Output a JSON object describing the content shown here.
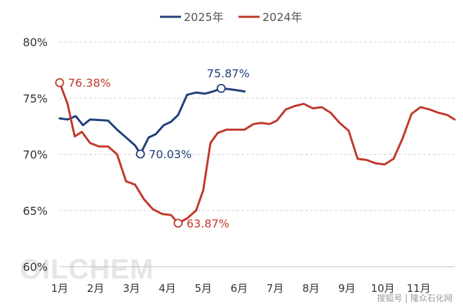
{
  "chart_data": {
    "type": "line",
    "title": "",
    "xlabel": "",
    "ylabel": "",
    "ylim": [
      60,
      80
    ],
    "y_ticks": [
      60,
      65,
      70,
      75,
      80
    ],
    "y_tick_labels": [
      "60%",
      "65%",
      "70%",
      "75%",
      "80%"
    ],
    "x_range": [
      1,
      12
    ],
    "x_ticks": [
      1,
      2,
      3,
      4,
      5,
      6,
      7,
      8,
      9,
      10,
      11
    ],
    "x_tick_labels": [
      "1月",
      "2月",
      "3月",
      "4月",
      "5月",
      "6月",
      "7月",
      "8月",
      "9月",
      "10月",
      "11月"
    ],
    "grid": "horizontal dashed",
    "legend_position": "top-center",
    "series": [
      {
        "name": "2025年",
        "color": "#1f3f7a",
        "x": [
          1.0,
          1.22,
          1.45,
          1.65,
          1.85,
          2.1,
          2.35,
          2.6,
          2.85,
          3.1,
          3.25,
          3.48,
          3.68,
          3.9,
          4.1,
          4.3,
          4.55,
          4.8,
          5.05,
          5.28,
          5.5,
          5.72,
          5.95,
          6.15
        ],
        "y": [
          73.2,
          73.1,
          73.4,
          72.6,
          73.1,
          73.05,
          73.0,
          72.2,
          71.5,
          70.8,
          70.03,
          71.5,
          71.8,
          72.6,
          72.9,
          73.5,
          75.3,
          75.5,
          75.4,
          75.6,
          75.87,
          75.8,
          75.7,
          75.6
        ]
      },
      {
        "name": "2024年",
        "color": "#c0392b",
        "x": [
          1.0,
          1.22,
          1.42,
          1.62,
          1.85,
          2.1,
          2.35,
          2.6,
          2.85,
          3.1,
          3.35,
          3.6,
          3.85,
          4.1,
          4.3,
          4.55,
          4.8,
          5.0,
          5.2,
          5.4,
          5.65,
          5.9,
          6.15,
          6.4,
          6.62,
          6.85,
          7.05,
          7.3,
          7.55,
          7.8,
          8.05,
          8.3,
          8.55,
          8.8,
          9.05,
          9.3,
          9.55,
          9.8,
          10.05,
          10.3,
          10.55,
          10.8,
          11.05,
          11.3,
          11.55,
          11.8,
          12.0
        ],
        "y": [
          76.38,
          74.5,
          71.6,
          72.0,
          71.0,
          70.7,
          70.7,
          70.0,
          67.6,
          67.3,
          66.0,
          65.1,
          64.7,
          64.6,
          63.87,
          64.3,
          65.0,
          66.8,
          71.0,
          71.9,
          72.2,
          72.2,
          72.2,
          72.7,
          72.8,
          72.7,
          73.0,
          74.0,
          74.3,
          74.5,
          74.1,
          74.2,
          73.7,
          72.8,
          72.1,
          69.6,
          69.5,
          69.2,
          69.1,
          69.6,
          71.4,
          73.6,
          74.2,
          74.0,
          73.7,
          73.5,
          73.1
        ]
      }
    ],
    "annotations": [
      {
        "series": "2024年",
        "x": 1.0,
        "y": 76.38,
        "text": "76.38%",
        "placement": "right"
      },
      {
        "series": "2025年",
        "x": 3.25,
        "y": 70.03,
        "text": "70.03%",
        "placement": "right"
      },
      {
        "series": "2025年",
        "x": 5.5,
        "y": 75.87,
        "text": "75.87%",
        "placement": "above"
      },
      {
        "series": "2024年",
        "x": 4.3,
        "y": 63.87,
        "text": "63.87%",
        "placement": "right"
      }
    ]
  },
  "watermark": "OILCHEM",
  "source_text": "搜狐号 | 隆众石化网"
}
